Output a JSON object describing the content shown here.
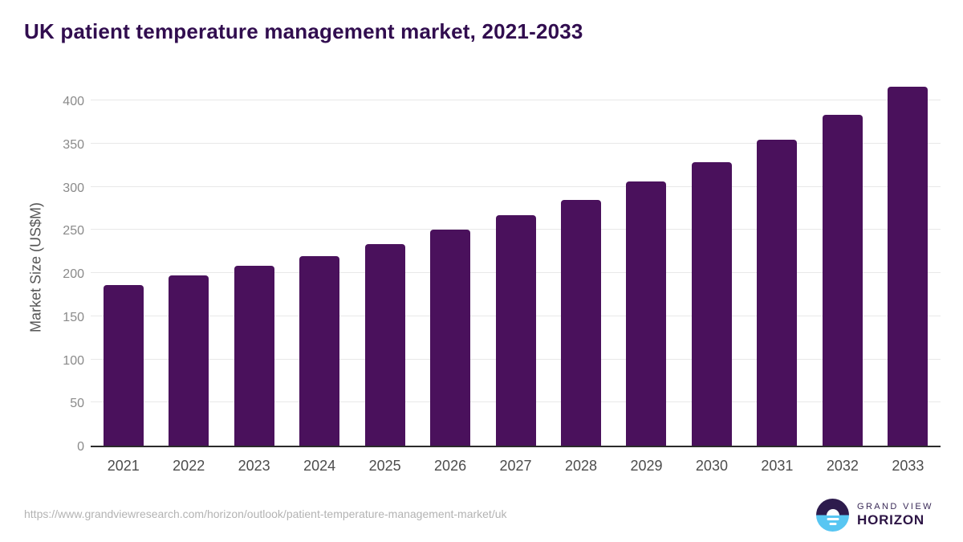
{
  "chart_data": {
    "type": "bar",
    "title": "UK patient temperature management market, 2021-2033",
    "categories": [
      "2021",
      "2022",
      "2023",
      "2024",
      "2025",
      "2026",
      "2027",
      "2028",
      "2029",
      "2030",
      "2031",
      "2032",
      "2033"
    ],
    "values": [
      186,
      197,
      209,
      220,
      234,
      250,
      267,
      285,
      306,
      329,
      355,
      384,
      416
    ],
    "xlabel": "",
    "ylabel": "Market Size (US$M)",
    "ylim": [
      0,
      417
    ],
    "yticks": [
      0,
      50,
      100,
      150,
      200,
      250,
      300,
      350,
      400
    ],
    "grid": "horizontal-only",
    "legend": "none",
    "bar_color": "#4a115c"
  },
  "footer": {
    "source_url": "https://www.grandviewresearch.com/horizon/outlook/patient-temperature-management-market/uk",
    "brand_top": "GRAND VIEW",
    "brand_bottom": "HORIZON"
  },
  "colors": {
    "title_text": "#310d4f",
    "bar": "#4a115c",
    "axis_line": "#2b2b2b",
    "gridline": "#e8e8e8",
    "y_tick_text": "#8a8a8a",
    "x_label_text": "#4c4c4c",
    "source_url_text": "#b3b3b3",
    "logo_purple": "#2d1b4d",
    "logo_blue": "#58c6f2"
  }
}
